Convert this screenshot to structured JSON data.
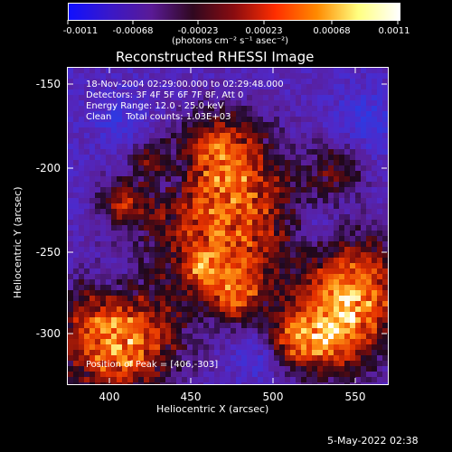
{
  "colorbar": {
    "ticks": [
      "-0.0011",
      "-0.00068",
      "-0.00023",
      "0.00023",
      "0.00068",
      "0.0011"
    ],
    "units": "(photons cm⁻² s⁻¹ asec⁻²)",
    "stops": [
      "#1010ff",
      "#3a18c8",
      "#5a1a96",
      "#300820",
      "#8a0c10",
      "#ff2e00",
      "#ff8a00",
      "#ffff80",
      "#ffffff"
    ]
  },
  "title": "Reconstructed RHESSI Image",
  "info": {
    "time": "18-Nov-2004 02:29:00.000 to 02:29:48.000",
    "detectors": "Detectors: 3F 4F 5F 6F 7F 8F, Att 0",
    "energy": "Energy Range: 12.0 - 25.0 keV",
    "clean": "Clean     Total counts: 1.03E+03"
  },
  "peak": "Position of Peak = [406,-303]",
  "axes": {
    "xlabel": "Heliocentric X (arcsec)",
    "ylabel": "Heliocentric Y (arcsec)",
    "xticks": [
      "400",
      "450",
      "500",
      "550"
    ],
    "yticks": [
      "-150",
      "-200",
      "-250",
      "-300"
    ]
  },
  "timestamp": "5-May-2022 02:38"
}
